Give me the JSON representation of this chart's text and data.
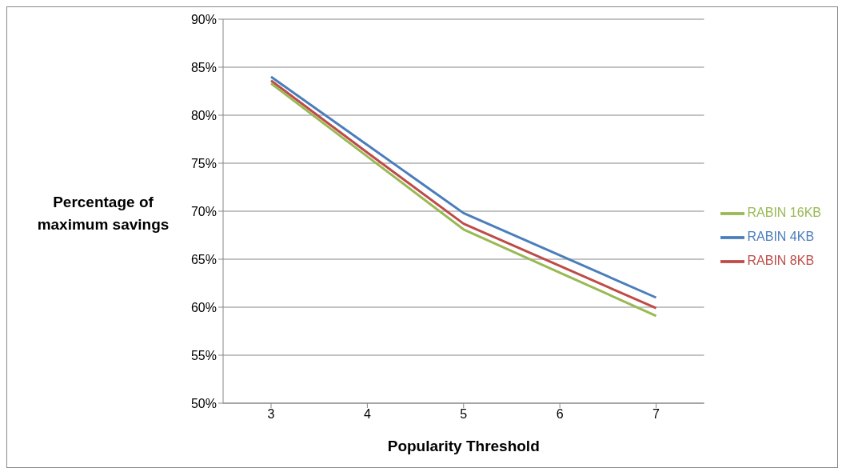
{
  "chart_data": {
    "type": "line",
    "xlabel": "Popularity Threshold",
    "ylabel": "Percentage of maximum savings",
    "categories": [
      "3",
      "4",
      "5",
      "6",
      "7"
    ],
    "series": [
      {
        "name": "RABIN 4KB",
        "color": "#4a7ebb",
        "values": [
          84.0,
          76.9,
          69.8,
          65.4,
          61.0
        ]
      },
      {
        "name": "RABIN 8KB",
        "color": "#be4b48",
        "values": [
          83.6,
          76.1,
          68.7,
          64.3,
          59.9
        ]
      },
      {
        "name": "RABIN 16KB",
        "color": "#98b954",
        "values": [
          83.3,
          75.7,
          68.1,
          63.6,
          59.1
        ]
      }
    ],
    "ylim": [
      50,
      90
    ],
    "yticks": [
      {
        "value": 50,
        "label": "50%"
      },
      {
        "value": 55,
        "label": "55%"
      },
      {
        "value": 60,
        "label": "60%"
      },
      {
        "value": 65,
        "label": "65%"
      },
      {
        "value": 70,
        "label": "70%"
      },
      {
        "value": 75,
        "label": "75%"
      },
      {
        "value": 80,
        "label": "80%"
      },
      {
        "value": 85,
        "label": "85%"
      },
      {
        "value": 90,
        "label": "90%"
      }
    ],
    "grid": "y",
    "legend": "right",
    "marker": "none",
    "line_style": "solid"
  }
}
